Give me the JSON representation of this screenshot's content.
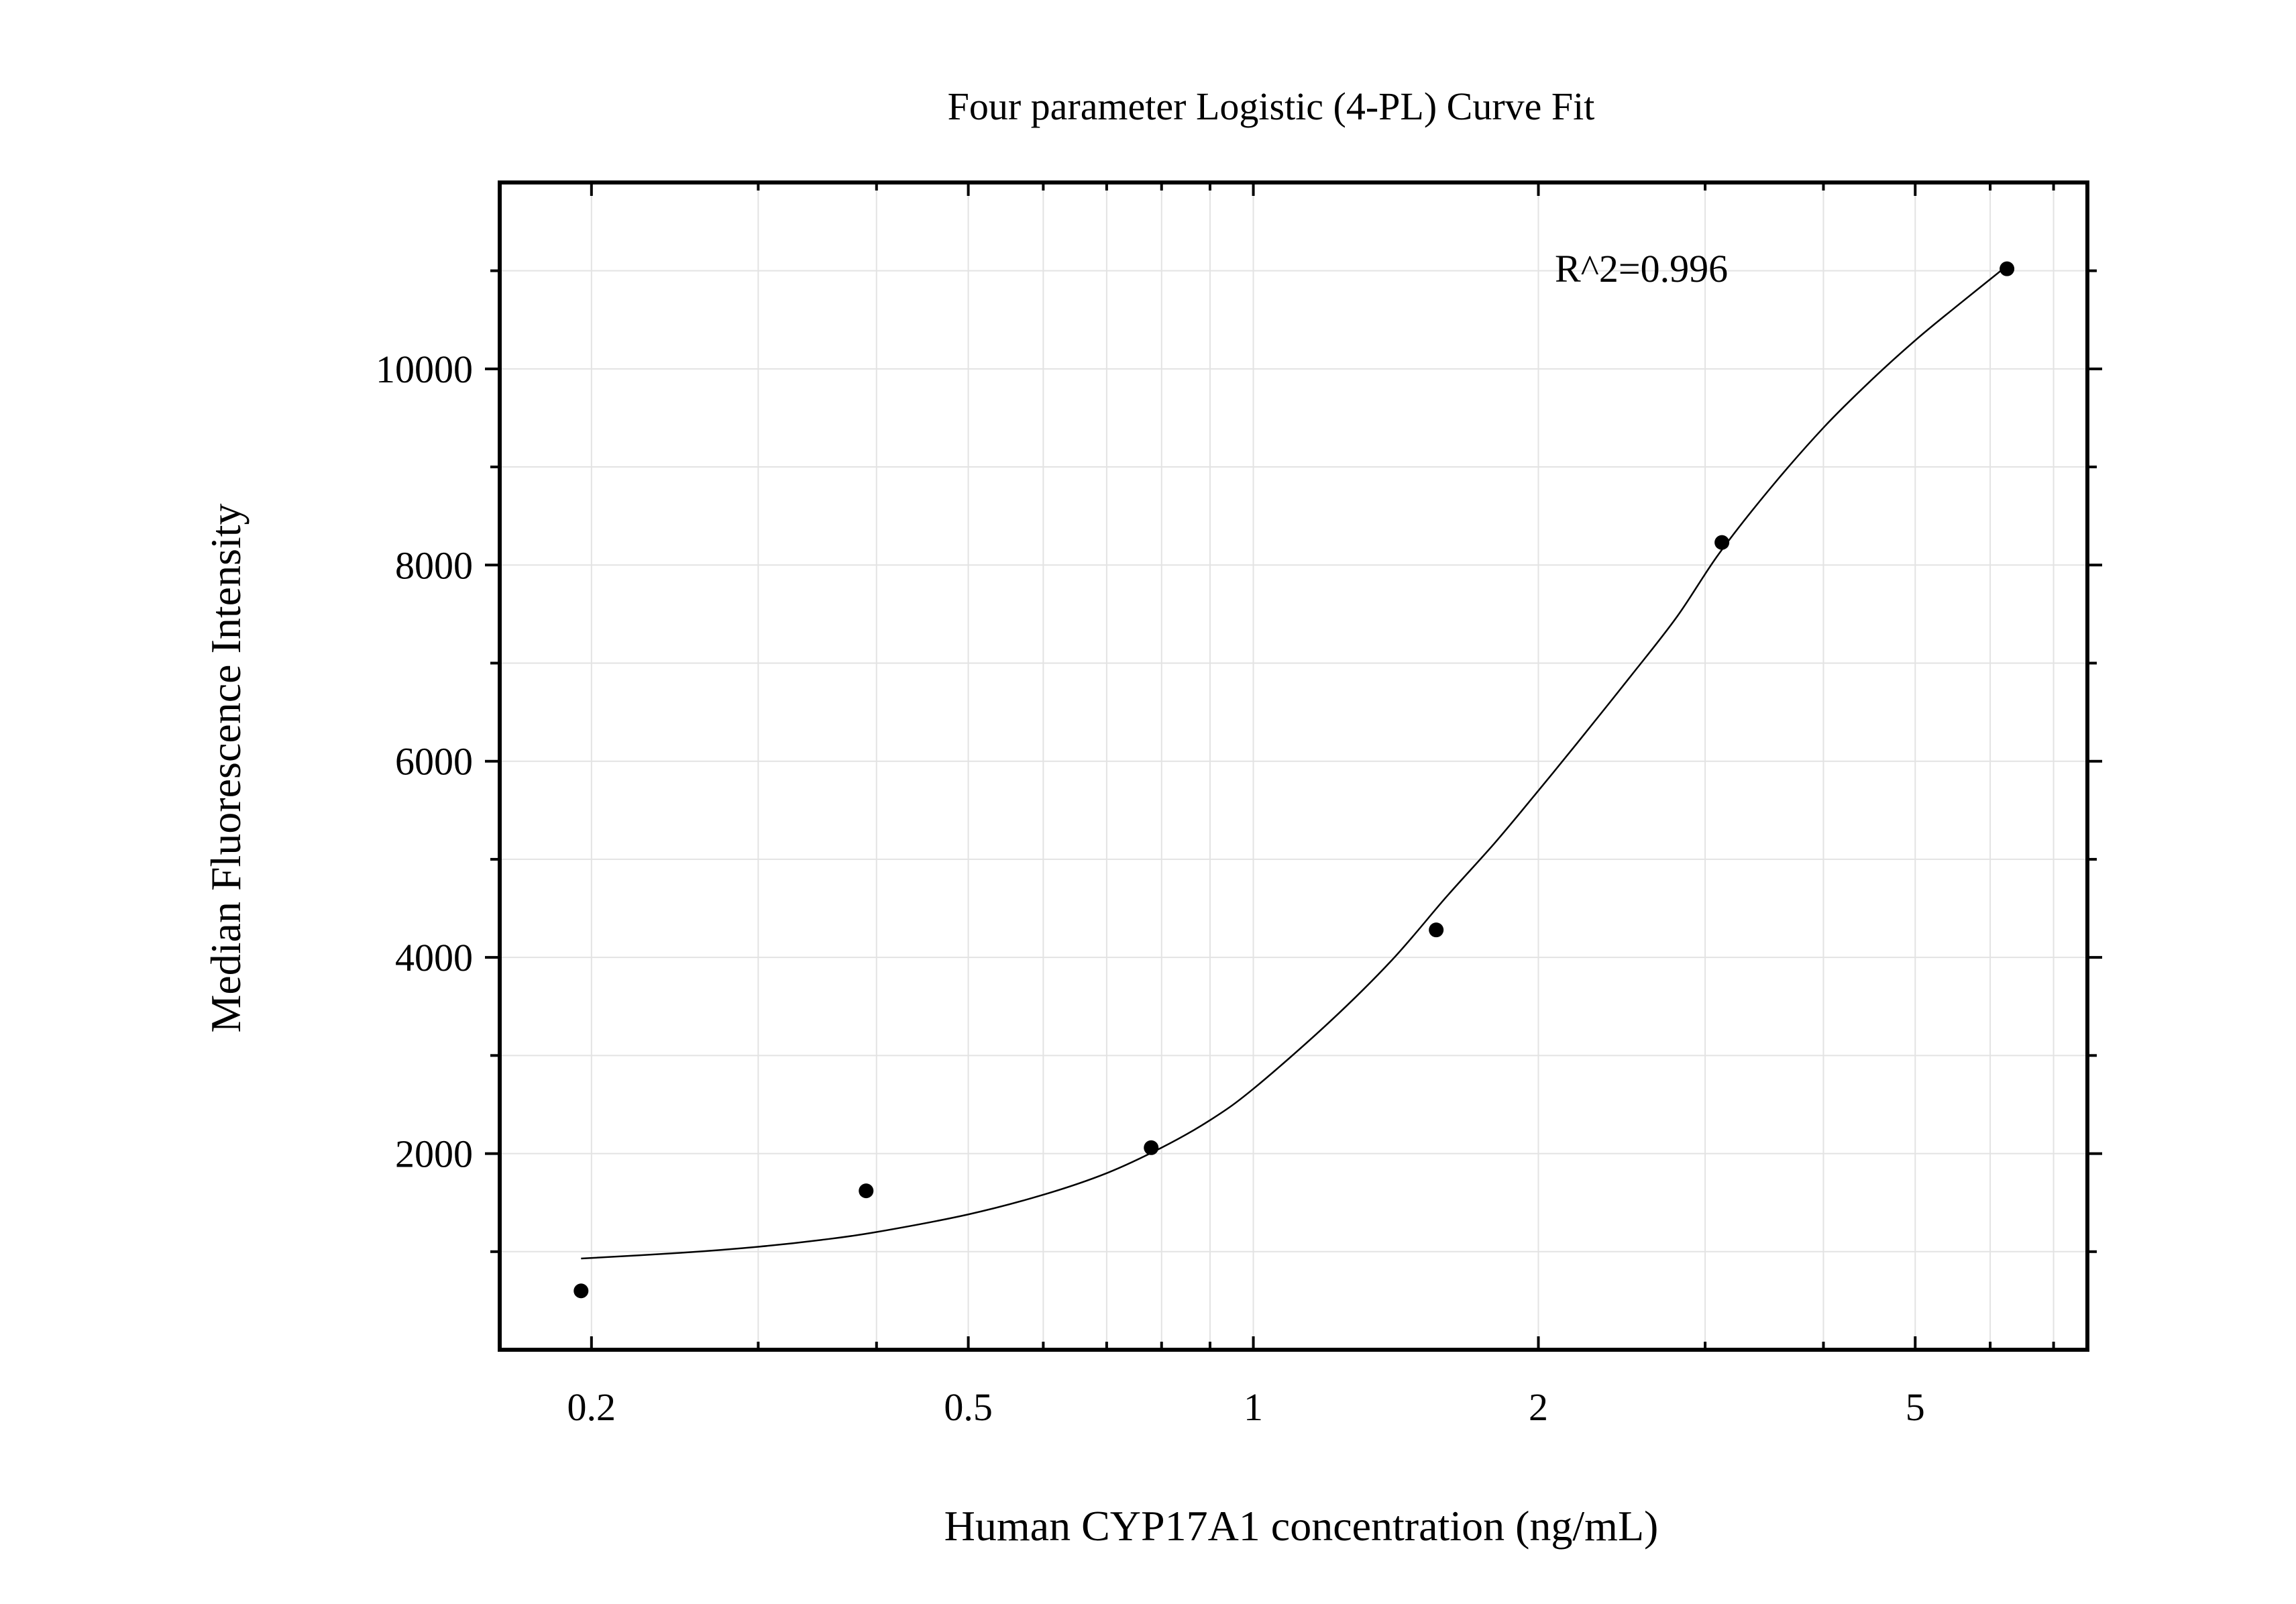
{
  "chart_data": {
    "type": "scatter",
    "title": "Four parameter Logistic (4-PL) Curve Fit",
    "xlabel": "Human CYP17A1 concentration (ng/mL)",
    "ylabel": "Median Fluorescence Intensity",
    "x_scale": "log",
    "xlim": [
      0.16,
      7.6
    ],
    "ylim": [
      0,
      11900
    ],
    "x_ticks": [
      {
        "value": 0.2,
        "label": "0.2"
      },
      {
        "value": 0.5,
        "label": "0.5"
      },
      {
        "value": 1,
        "label": "1"
      },
      {
        "value": 2,
        "label": "2"
      },
      {
        "value": 5,
        "label": "5"
      }
    ],
    "x_minor_ticks": [
      0.3,
      0.4,
      0.6,
      0.7,
      0.8,
      0.9,
      3,
      4,
      6,
      7
    ],
    "y_ticks": [
      {
        "value": 2000,
        "label": "2000"
      },
      {
        "value": 4000,
        "label": "4000"
      },
      {
        "value": 6000,
        "label": "6000"
      },
      {
        "value": 8000,
        "label": "8000"
      },
      {
        "value": 10000,
        "label": "10000"
      }
    ],
    "y_minor_ticks": [
      1000,
      3000,
      5000,
      7000,
      9000,
      11000
    ],
    "grid": true,
    "legend": "none",
    "series": [
      {
        "x": [
          0.195,
          0.39,
          0.78,
          1.56,
          3.125,
          6.25
        ],
        "y": [
          600,
          1620,
          2060,
          4280,
          8230,
          11020
        ]
      }
    ],
    "fit_curve": {
      "model": "4PL",
      "x_range": [
        0.195,
        6.25
      ],
      "points": [
        [
          0.195,
          930
        ],
        [
          0.25,
          990
        ],
        [
          0.3,
          1050
        ],
        [
          0.35,
          1120
        ],
        [
          0.4,
          1200
        ],
        [
          0.5,
          1380
        ],
        [
          0.6,
          1580
        ],
        [
          0.7,
          1800
        ],
        [
          0.8,
          2060
        ],
        [
          0.9,
          2340
        ],
        [
          1.0,
          2660
        ],
        [
          1.2,
          3330
        ],
        [
          1.4,
          3970
        ],
        [
          1.6,
          4620
        ],
        [
          1.8,
          5170
        ],
        [
          2.0,
          5700
        ],
        [
          2.2,
          6190
        ],
        [
          2.5,
          6860
        ],
        [
          2.8,
          7470
        ],
        [
          3.1,
          8110
        ],
        [
          3.5,
          8760
        ],
        [
          4.0,
          9400
        ],
        [
          4.5,
          9890
        ],
        [
          5.0,
          10290
        ],
        [
          5.5,
          10620
        ],
        [
          6.25,
          11050
        ]
      ]
    },
    "annotations": [
      {
        "text": "R^2=0.996"
      }
    ]
  }
}
